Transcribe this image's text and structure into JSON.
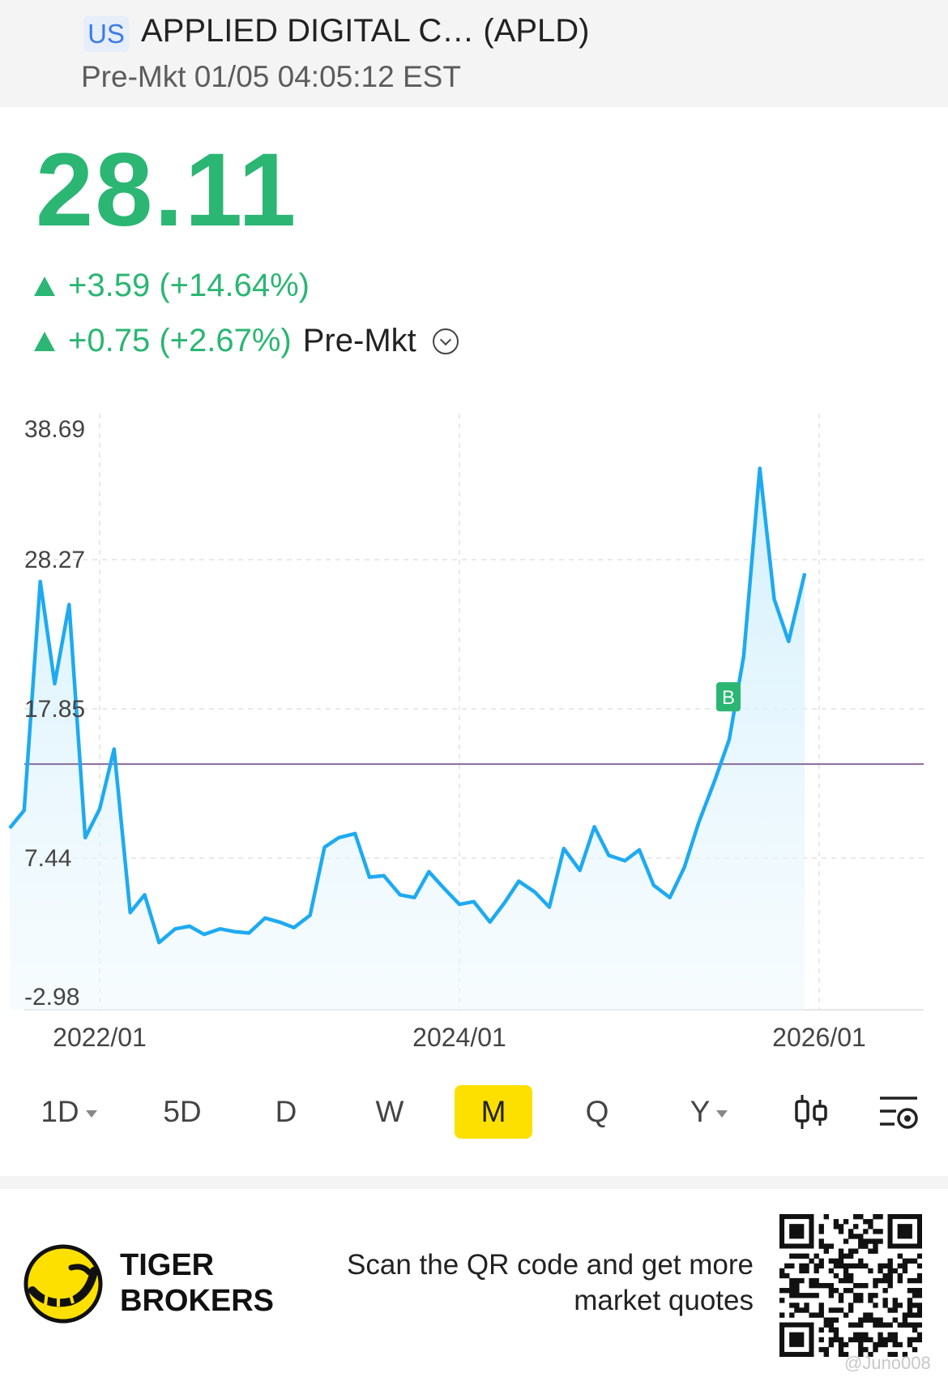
{
  "header": {
    "market_badge": "US",
    "company_title": "APPLIED DIGITAL C… (APLD)",
    "session_status": "Pre-Mkt 01/05 04:05:12 EST"
  },
  "quote": {
    "last_price": "28.11",
    "change": "+3.59 (+14.64%)",
    "premarket_change": "+0.75 (+2.67%)",
    "premarket_label": "Pre-Mkt"
  },
  "colors": {
    "up": "#2bb673",
    "line": "#1eaaf1",
    "reference_line": "#8a6a9a",
    "active_tab": "#fde000"
  },
  "chart_data": {
    "type": "area",
    "y_ticks": [
      "38.69",
      "28.27",
      "17.85",
      "7.44",
      "-2.98"
    ],
    "ylim": [
      -2.98,
      38.69
    ],
    "x_ticks": [
      "2022/01",
      "2024/01",
      "2026/01"
    ],
    "reference_value": 14.1,
    "buy_marker": {
      "label": "B",
      "x": "2025/06",
      "y": 16.3
    },
    "series": [
      {
        "values": [
          [
            2021.5,
            9.4
          ],
          [
            2021.58,
            10.7
          ],
          [
            2021.67,
            27.5
          ],
          [
            2021.75,
            20.0
          ],
          [
            2021.83,
            25.8
          ],
          [
            2021.92,
            8.7
          ],
          [
            2022.0,
            10.8
          ],
          [
            2022.08,
            15.2
          ],
          [
            2022.17,
            3.2
          ],
          [
            2022.25,
            4.5
          ],
          [
            2022.33,
            1.0
          ],
          [
            2022.42,
            2.0
          ],
          [
            2022.5,
            2.2
          ],
          [
            2022.58,
            1.6
          ],
          [
            2022.67,
            2.0
          ],
          [
            2022.75,
            1.8
          ],
          [
            2022.83,
            1.7
          ],
          [
            2022.92,
            2.8
          ],
          [
            2023.0,
            2.5
          ],
          [
            2023.08,
            2.1
          ],
          [
            2023.17,
            3.0
          ],
          [
            2023.25,
            8.0
          ],
          [
            2023.33,
            8.7
          ],
          [
            2023.42,
            9.0
          ],
          [
            2023.5,
            5.8
          ],
          [
            2023.58,
            5.9
          ],
          [
            2023.67,
            4.5
          ],
          [
            2023.75,
            4.3
          ],
          [
            2023.83,
            6.2
          ],
          [
            2023.92,
            4.9
          ],
          [
            2024.0,
            3.8
          ],
          [
            2024.08,
            4.0
          ],
          [
            2024.17,
            2.5
          ],
          [
            2024.25,
            3.9
          ],
          [
            2024.33,
            5.5
          ],
          [
            2024.42,
            4.7
          ],
          [
            2024.5,
            3.6
          ],
          [
            2024.58,
            7.9
          ],
          [
            2024.67,
            6.3
          ],
          [
            2024.75,
            9.5
          ],
          [
            2024.83,
            7.4
          ],
          [
            2024.92,
            7.0
          ],
          [
            2025.0,
            7.8
          ],
          [
            2025.08,
            5.2
          ],
          [
            2025.17,
            4.3
          ],
          [
            2025.25,
            6.5
          ],
          [
            2025.33,
            9.8
          ],
          [
            2025.42,
            12.9
          ],
          [
            2025.5,
            15.9
          ],
          [
            2025.58,
            22.0
          ],
          [
            2025.67,
            35.8
          ],
          [
            2025.75,
            26.2
          ],
          [
            2025.83,
            23.1
          ],
          [
            2025.92,
            28.1
          ]
        ]
      }
    ]
  },
  "timeframes": [
    {
      "label": "1D",
      "dropdown": true
    },
    {
      "label": "5D"
    },
    {
      "label": "D"
    },
    {
      "label": "W"
    },
    {
      "label": "M",
      "active": true
    },
    {
      "label": "Q"
    },
    {
      "label": "Y",
      "dropdown": true
    }
  ],
  "toolbar_icons": [
    "candlestick-icon",
    "chart-settings-icon"
  ],
  "footer": {
    "brand_name": [
      "TIGER",
      "BROKERS"
    ],
    "cta_lines": [
      "Scan the QR code and get more",
      "market quotes"
    ],
    "watermark": "@Juno008"
  }
}
